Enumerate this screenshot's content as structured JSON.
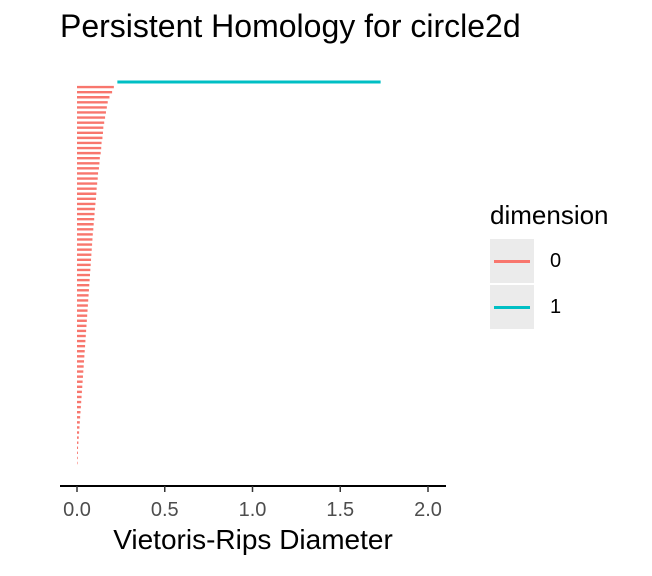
{
  "chart_data": {
    "type": "barcode",
    "title": "Persistent Homology for circle2d",
    "xlabel": "Vietoris-Rips Diameter",
    "xlim": [
      0,
      2.0
    ],
    "x_ticks": [
      0.0,
      0.5,
      1.0,
      1.5,
      2.0
    ],
    "x_tick_labels": [
      "0.0",
      "0.5",
      "1.0",
      "1.5",
      "2.0"
    ],
    "legend": {
      "title": "dimension",
      "entries": [
        {
          "label": "0",
          "color": "#f8766d"
        },
        {
          "label": "1",
          "color": "#00bfc4"
        }
      ]
    },
    "series": [
      {
        "name": "0",
        "color": "#f8766d",
        "bars": [
          [
            0,
            0.21
          ],
          [
            0,
            0.2
          ],
          [
            0,
            0.185
          ],
          [
            0,
            0.175
          ],
          [
            0,
            0.17
          ],
          [
            0,
            0.165
          ],
          [
            0,
            0.16
          ],
          [
            0,
            0.155
          ],
          [
            0,
            0.15
          ],
          [
            0,
            0.148
          ],
          [
            0,
            0.145
          ],
          [
            0,
            0.14
          ],
          [
            0,
            0.138
          ],
          [
            0,
            0.135
          ],
          [
            0,
            0.13
          ],
          [
            0,
            0.128
          ],
          [
            0,
            0.125
          ],
          [
            0,
            0.12
          ],
          [
            0,
            0.118
          ],
          [
            0,
            0.115
          ],
          [
            0,
            0.112
          ],
          [
            0,
            0.11
          ],
          [
            0,
            0.108
          ],
          [
            0,
            0.105
          ],
          [
            0,
            0.102
          ],
          [
            0,
            0.1
          ],
          [
            0,
            0.098
          ],
          [
            0,
            0.095
          ],
          [
            0,
            0.093
          ],
          [
            0,
            0.09
          ],
          [
            0,
            0.088
          ],
          [
            0,
            0.086
          ],
          [
            0,
            0.084
          ],
          [
            0,
            0.082
          ],
          [
            0,
            0.08
          ],
          [
            0,
            0.078
          ],
          [
            0,
            0.076
          ],
          [
            0,
            0.074
          ],
          [
            0,
            0.072
          ],
          [
            0,
            0.07
          ],
          [
            0,
            0.068
          ],
          [
            0,
            0.066
          ],
          [
            0,
            0.064
          ],
          [
            0,
            0.062
          ],
          [
            0,
            0.06
          ],
          [
            0,
            0.058
          ],
          [
            0,
            0.056
          ],
          [
            0,
            0.054
          ],
          [
            0,
            0.052
          ],
          [
            0,
            0.05
          ],
          [
            0,
            0.048
          ],
          [
            0,
            0.046
          ],
          [
            0,
            0.044
          ],
          [
            0,
            0.042
          ],
          [
            0,
            0.04
          ],
          [
            0,
            0.038
          ],
          [
            0,
            0.036
          ],
          [
            0,
            0.034
          ],
          [
            0,
            0.032
          ],
          [
            0,
            0.03
          ],
          [
            0,
            0.028
          ],
          [
            0,
            0.026
          ],
          [
            0,
            0.024
          ],
          [
            0,
            0.022
          ],
          [
            0,
            0.02
          ],
          [
            0,
            0.018
          ],
          [
            0,
            0.016
          ],
          [
            0,
            0.014
          ],
          [
            0,
            0.012
          ],
          [
            0,
            0.01
          ],
          [
            0,
            0.008
          ],
          [
            0,
            0.006
          ],
          [
            0,
            0.005
          ],
          [
            0,
            0.004
          ],
          [
            0,
            0.003
          ]
        ]
      },
      {
        "name": "1",
        "color": "#00bfc4",
        "bars": [
          [
            0.23,
            1.73
          ]
        ]
      }
    ]
  }
}
